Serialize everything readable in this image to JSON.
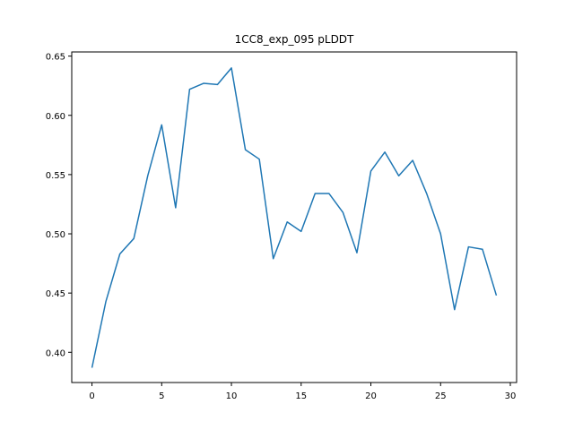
{
  "chart_data": {
    "type": "line",
    "title": "1CC8_exp_095 pLDDT",
    "xlabel": "",
    "ylabel": "",
    "xlim": [
      -1.45,
      30.45
    ],
    "ylim": [
      0.3745,
      0.6535
    ],
    "grid": false,
    "x_ticks": [
      0,
      5,
      10,
      15,
      20,
      25,
      30
    ],
    "x_tick_labels": [
      "0",
      "5",
      "10",
      "15",
      "20",
      "25",
      "30"
    ],
    "y_ticks": [
      0.4,
      0.45,
      0.5,
      0.55,
      0.6,
      0.65
    ],
    "y_tick_labels": [
      "0.40",
      "0.45",
      "0.50",
      "0.55",
      "0.60",
      "0.65"
    ],
    "series": [
      {
        "color": "#1f77b4",
        "x": [
          0,
          1,
          2,
          3,
          4,
          5,
          6,
          7,
          8,
          9,
          10,
          11,
          12,
          13,
          14,
          15,
          16,
          17,
          18,
          19,
          20,
          21,
          22,
          23,
          24,
          25,
          26,
          27,
          28,
          29
        ],
        "values": [
          0.387,
          0.443,
          0.483,
          0.496,
          0.549,
          0.592,
          0.522,
          0.622,
          0.627,
          0.626,
          0.64,
          0.571,
          0.563,
          0.479,
          0.51,
          0.502,
          0.534,
          0.534,
          0.518,
          0.484,
          0.553,
          0.569,
          0.549,
          0.562,
          0.534,
          0.5,
          0.436,
          0.489,
          0.487,
          0.448
        ]
      }
    ]
  }
}
